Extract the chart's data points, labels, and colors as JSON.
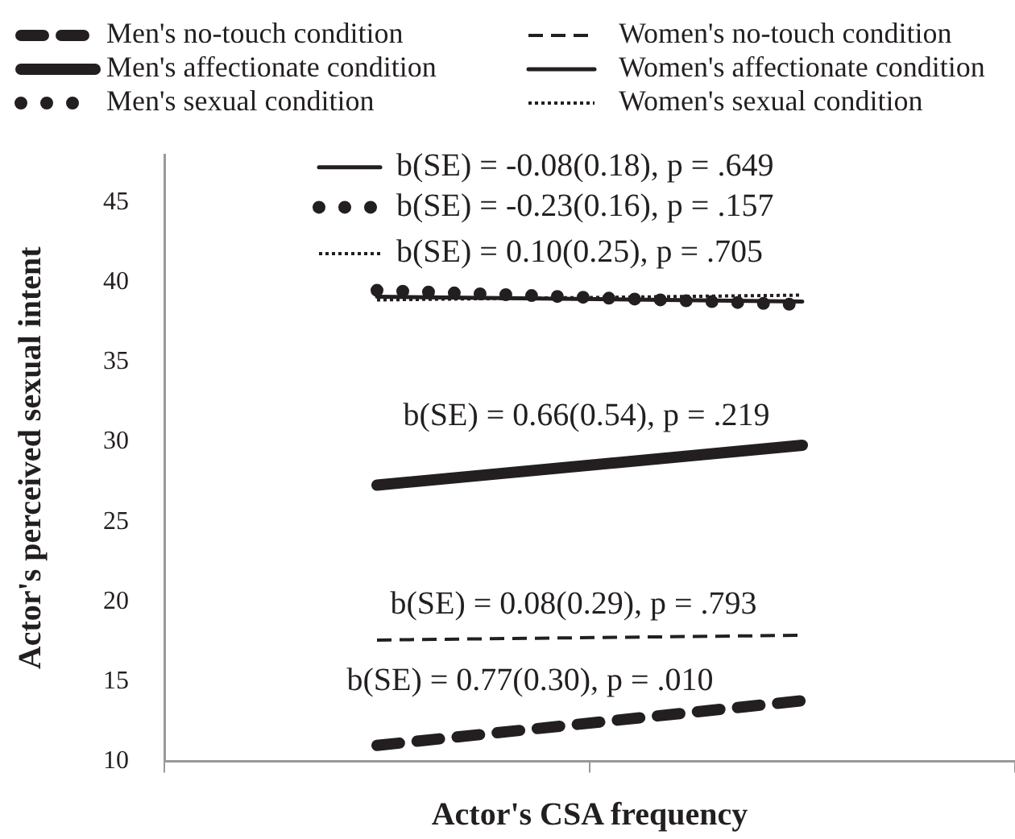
{
  "chart_data": {
    "type": "line",
    "xlabel": "Actor's CSA frequency",
    "ylabel": "Actor's perceived sexual intent",
    "categories": [
      null,
      null
    ],
    "series": [
      {
        "name": "Men's no-touch condition",
        "color": "#231f20",
        "values": [
          11.0,
          13.8
        ],
        "line_style": "dashed"
      },
      {
        "name": "Men's affectionate condition",
        "color": "#231f20",
        "values": [
          27.3,
          29.8
        ],
        "line_style": "solid"
      },
      {
        "name": "Men's sexual condition",
        "color": "#231f20",
        "values": [
          39.5,
          38.6
        ],
        "line_style": "dotted"
      },
      {
        "name": "Women's no-touch condition",
        "color": "#231f20",
        "values": [
          17.6,
          17.9
        ],
        "line_style": "dashed"
      },
      {
        "name": "Women's affectionate condition",
        "color": "#231f20",
        "values": [
          39.1,
          38.8
        ],
        "line_style": "solid"
      },
      {
        "name": "Women's sexual condition",
        "color": "#231f20",
        "values": [
          38.9,
          39.2
        ],
        "line_style": "dotted"
      }
    ],
    "ylim": [
      10,
      48
    ],
    "yticks": [
      10,
      15,
      20,
      25,
      30,
      35,
      40,
      45
    ],
    "annotations": [
      "b(SE) = -0.08(0.18), p = .649",
      "b(SE) = -0.23(0.16), p = .157",
      "b(SE) = 0.10(0.25), p = .705",
      "b(SE) = 0.66(0.54), p = .219",
      "b(SE) = 0.08(0.29), p = .793",
      "b(SE) = 0.77(0.30), p = .010"
    ],
    "legend": "top",
    "grid": false,
    "marker": "none"
  }
}
